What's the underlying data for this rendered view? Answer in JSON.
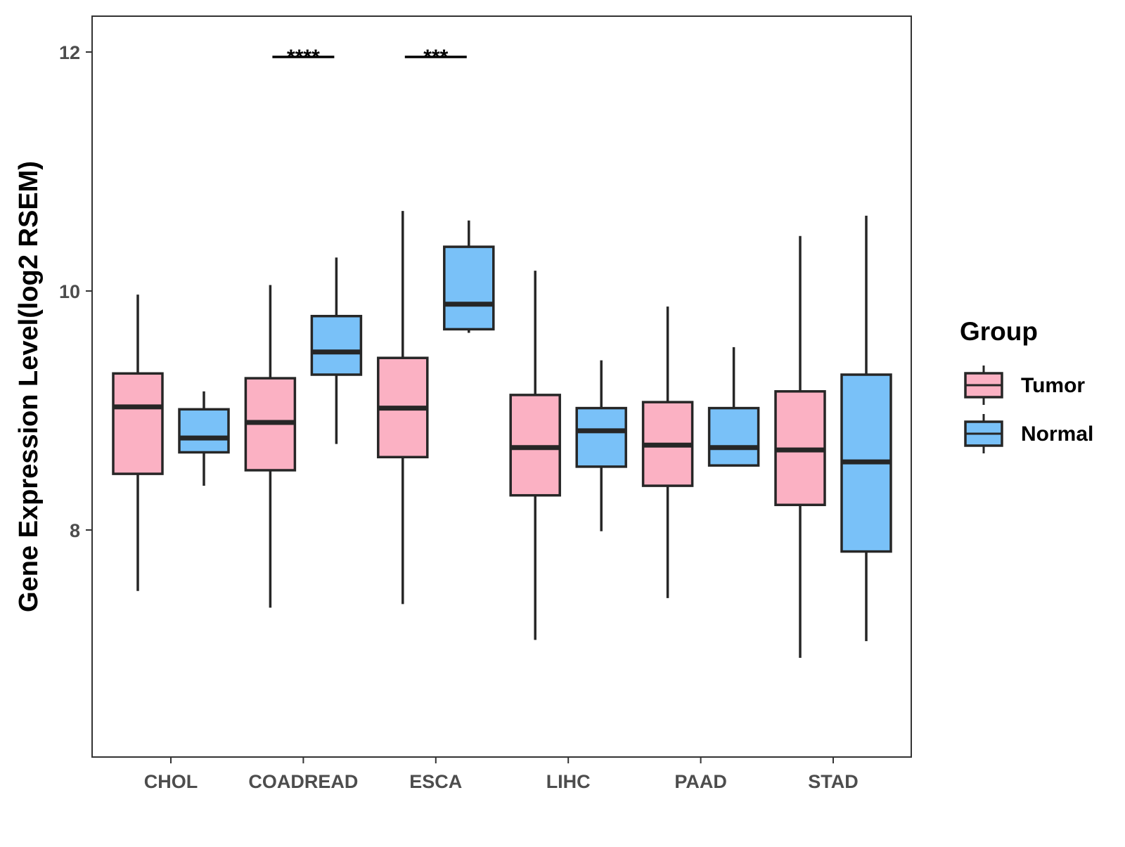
{
  "chart_data": {
    "type": "boxplot",
    "title": "",
    "xlabel": "",
    "ylabel": "Gene Expression Level(log2 RSEM)",
    "ylim": [
      6.1,
      12.3
    ],
    "yticks": [
      8,
      10,
      12
    ],
    "ytick_labels": [
      "8",
      "10",
      "12"
    ],
    "categories": [
      "CHOL",
      "COADREAD",
      "ESCA",
      "LIHC",
      "PAAD",
      "STAD"
    ],
    "legend": {
      "title": "Group",
      "position": "right",
      "entries": [
        {
          "name": "Tumor",
          "color": "#fbb1c3"
        },
        {
          "name": "Normal",
          "color": "#79c1f8"
        }
      ]
    },
    "series": [
      {
        "name": "Tumor",
        "color": "#fbb1c3",
        "boxes": [
          {
            "category": "CHOL",
            "whisker_low": 7.49,
            "q1": 8.47,
            "median": 9.03,
            "q3": 9.31,
            "whisker_high": 9.97
          },
          {
            "category": "COADREAD",
            "whisker_low": 7.35,
            "q1": 8.5,
            "median": 8.9,
            "q3": 9.27,
            "whisker_high": 10.05
          },
          {
            "category": "ESCA",
            "whisker_low": 7.38,
            "q1": 8.61,
            "median": 9.02,
            "q3": 9.44,
            "whisker_high": 10.67
          },
          {
            "category": "LIHC",
            "whisker_low": 7.08,
            "q1": 8.29,
            "median": 8.69,
            "q3": 9.13,
            "whisker_high": 10.17
          },
          {
            "category": "PAAD",
            "whisker_low": 7.43,
            "q1": 8.37,
            "median": 8.71,
            "q3": 9.07,
            "whisker_high": 9.87
          },
          {
            "category": "STAD",
            "whisker_low": 6.93,
            "q1": 8.21,
            "median": 8.67,
            "q3": 9.16,
            "whisker_high": 10.46
          }
        ]
      },
      {
        "name": "Normal",
        "color": "#79c1f8",
        "boxes": [
          {
            "category": "CHOL",
            "whisker_low": 8.37,
            "q1": 8.65,
            "median": 8.77,
            "q3": 9.01,
            "whisker_high": 9.16
          },
          {
            "category": "COADREAD",
            "whisker_low": 8.72,
            "q1": 9.3,
            "median": 9.49,
            "q3": 9.79,
            "whisker_high": 10.28
          },
          {
            "category": "ESCA",
            "whisker_low": 9.65,
            "q1": 9.68,
            "median": 9.89,
            "q3": 10.37,
            "whisker_high": 10.59
          },
          {
            "category": "LIHC",
            "whisker_low": 7.99,
            "q1": 8.53,
            "median": 8.83,
            "q3": 9.02,
            "whisker_high": 9.42
          },
          {
            "category": "PAAD",
            "whisker_low": 8.54,
            "q1": 8.54,
            "median": 8.69,
            "q3": 9.02,
            "whisker_high": 9.53
          },
          {
            "category": "STAD",
            "whisker_low": 7.07,
            "q1": 7.82,
            "median": 8.57,
            "q3": 9.3,
            "whisker_high": 10.63
          }
        ]
      }
    ],
    "annotations": [
      {
        "category": "COADREAD",
        "label": "****",
        "y": 12.0
      },
      {
        "category": "ESCA",
        "label": "***",
        "y": 12.0
      }
    ]
  }
}
